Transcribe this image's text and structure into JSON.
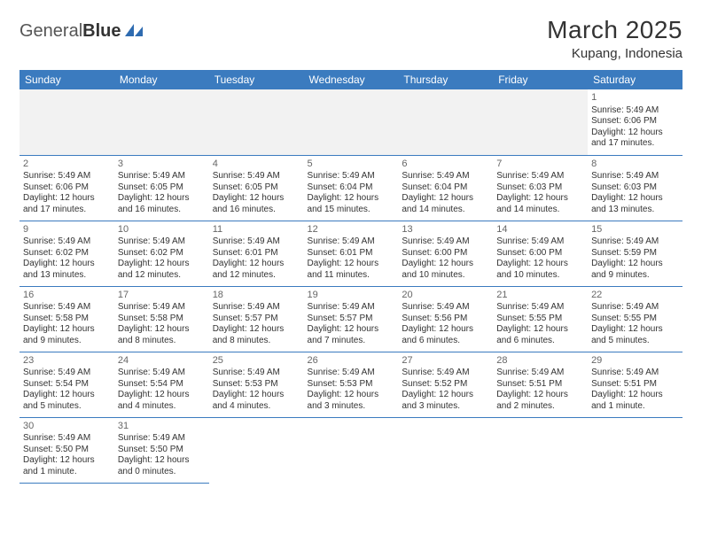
{
  "logo": {
    "text1": "General",
    "text2": "Blue"
  },
  "title": "March 2025",
  "location": "Kupang, Indonesia",
  "colors": {
    "header_bg": "#3b7bbf",
    "header_text": "#ffffff",
    "border": "#3b7bbf",
    "empty_bg": "#f2f2f2",
    "logo_accent": "#2e6bb0"
  },
  "weekdays": [
    "Sunday",
    "Monday",
    "Tuesday",
    "Wednesday",
    "Thursday",
    "Friday",
    "Saturday"
  ],
  "cells": [
    {
      "row": 0,
      "col": 6,
      "day": "1",
      "sunrise": "Sunrise: 5:49 AM",
      "sunset": "Sunset: 6:06 PM",
      "daylight": "Daylight: 12 hours and 17 minutes."
    },
    {
      "row": 1,
      "col": 0,
      "day": "2",
      "sunrise": "Sunrise: 5:49 AM",
      "sunset": "Sunset: 6:06 PM",
      "daylight": "Daylight: 12 hours and 17 minutes."
    },
    {
      "row": 1,
      "col": 1,
      "day": "3",
      "sunrise": "Sunrise: 5:49 AM",
      "sunset": "Sunset: 6:05 PM",
      "daylight": "Daylight: 12 hours and 16 minutes."
    },
    {
      "row": 1,
      "col": 2,
      "day": "4",
      "sunrise": "Sunrise: 5:49 AM",
      "sunset": "Sunset: 6:05 PM",
      "daylight": "Daylight: 12 hours and 16 minutes."
    },
    {
      "row": 1,
      "col": 3,
      "day": "5",
      "sunrise": "Sunrise: 5:49 AM",
      "sunset": "Sunset: 6:04 PM",
      "daylight": "Daylight: 12 hours and 15 minutes."
    },
    {
      "row": 1,
      "col": 4,
      "day": "6",
      "sunrise": "Sunrise: 5:49 AM",
      "sunset": "Sunset: 6:04 PM",
      "daylight": "Daylight: 12 hours and 14 minutes."
    },
    {
      "row": 1,
      "col": 5,
      "day": "7",
      "sunrise": "Sunrise: 5:49 AM",
      "sunset": "Sunset: 6:03 PM",
      "daylight": "Daylight: 12 hours and 14 minutes."
    },
    {
      "row": 1,
      "col": 6,
      "day": "8",
      "sunrise": "Sunrise: 5:49 AM",
      "sunset": "Sunset: 6:03 PM",
      "daylight": "Daylight: 12 hours and 13 minutes."
    },
    {
      "row": 2,
      "col": 0,
      "day": "9",
      "sunrise": "Sunrise: 5:49 AM",
      "sunset": "Sunset: 6:02 PM",
      "daylight": "Daylight: 12 hours and 13 minutes."
    },
    {
      "row": 2,
      "col": 1,
      "day": "10",
      "sunrise": "Sunrise: 5:49 AM",
      "sunset": "Sunset: 6:02 PM",
      "daylight": "Daylight: 12 hours and 12 minutes."
    },
    {
      "row": 2,
      "col": 2,
      "day": "11",
      "sunrise": "Sunrise: 5:49 AM",
      "sunset": "Sunset: 6:01 PM",
      "daylight": "Daylight: 12 hours and 12 minutes."
    },
    {
      "row": 2,
      "col": 3,
      "day": "12",
      "sunrise": "Sunrise: 5:49 AM",
      "sunset": "Sunset: 6:01 PM",
      "daylight": "Daylight: 12 hours and 11 minutes."
    },
    {
      "row": 2,
      "col": 4,
      "day": "13",
      "sunrise": "Sunrise: 5:49 AM",
      "sunset": "Sunset: 6:00 PM",
      "daylight": "Daylight: 12 hours and 10 minutes."
    },
    {
      "row": 2,
      "col": 5,
      "day": "14",
      "sunrise": "Sunrise: 5:49 AM",
      "sunset": "Sunset: 6:00 PM",
      "daylight": "Daylight: 12 hours and 10 minutes."
    },
    {
      "row": 2,
      "col": 6,
      "day": "15",
      "sunrise": "Sunrise: 5:49 AM",
      "sunset": "Sunset: 5:59 PM",
      "daylight": "Daylight: 12 hours and 9 minutes."
    },
    {
      "row": 3,
      "col": 0,
      "day": "16",
      "sunrise": "Sunrise: 5:49 AM",
      "sunset": "Sunset: 5:58 PM",
      "daylight": "Daylight: 12 hours and 9 minutes."
    },
    {
      "row": 3,
      "col": 1,
      "day": "17",
      "sunrise": "Sunrise: 5:49 AM",
      "sunset": "Sunset: 5:58 PM",
      "daylight": "Daylight: 12 hours and 8 minutes."
    },
    {
      "row": 3,
      "col": 2,
      "day": "18",
      "sunrise": "Sunrise: 5:49 AM",
      "sunset": "Sunset: 5:57 PM",
      "daylight": "Daylight: 12 hours and 8 minutes."
    },
    {
      "row": 3,
      "col": 3,
      "day": "19",
      "sunrise": "Sunrise: 5:49 AM",
      "sunset": "Sunset: 5:57 PM",
      "daylight": "Daylight: 12 hours and 7 minutes."
    },
    {
      "row": 3,
      "col": 4,
      "day": "20",
      "sunrise": "Sunrise: 5:49 AM",
      "sunset": "Sunset: 5:56 PM",
      "daylight": "Daylight: 12 hours and 6 minutes."
    },
    {
      "row": 3,
      "col": 5,
      "day": "21",
      "sunrise": "Sunrise: 5:49 AM",
      "sunset": "Sunset: 5:55 PM",
      "daylight": "Daylight: 12 hours and 6 minutes."
    },
    {
      "row": 3,
      "col": 6,
      "day": "22",
      "sunrise": "Sunrise: 5:49 AM",
      "sunset": "Sunset: 5:55 PM",
      "daylight": "Daylight: 12 hours and 5 minutes."
    },
    {
      "row": 4,
      "col": 0,
      "day": "23",
      "sunrise": "Sunrise: 5:49 AM",
      "sunset": "Sunset: 5:54 PM",
      "daylight": "Daylight: 12 hours and 5 minutes."
    },
    {
      "row": 4,
      "col": 1,
      "day": "24",
      "sunrise": "Sunrise: 5:49 AM",
      "sunset": "Sunset: 5:54 PM",
      "daylight": "Daylight: 12 hours and 4 minutes."
    },
    {
      "row": 4,
      "col": 2,
      "day": "25",
      "sunrise": "Sunrise: 5:49 AM",
      "sunset": "Sunset: 5:53 PM",
      "daylight": "Daylight: 12 hours and 4 minutes."
    },
    {
      "row": 4,
      "col": 3,
      "day": "26",
      "sunrise": "Sunrise: 5:49 AM",
      "sunset": "Sunset: 5:53 PM",
      "daylight": "Daylight: 12 hours and 3 minutes."
    },
    {
      "row": 4,
      "col": 4,
      "day": "27",
      "sunrise": "Sunrise: 5:49 AM",
      "sunset": "Sunset: 5:52 PM",
      "daylight": "Daylight: 12 hours and 3 minutes."
    },
    {
      "row": 4,
      "col": 5,
      "day": "28",
      "sunrise": "Sunrise: 5:49 AM",
      "sunset": "Sunset: 5:51 PM",
      "daylight": "Daylight: 12 hours and 2 minutes."
    },
    {
      "row": 4,
      "col": 6,
      "day": "29",
      "sunrise": "Sunrise: 5:49 AM",
      "sunset": "Sunset: 5:51 PM",
      "daylight": "Daylight: 12 hours and 1 minute."
    },
    {
      "row": 5,
      "col": 0,
      "day": "30",
      "sunrise": "Sunrise: 5:49 AM",
      "sunset": "Sunset: 5:50 PM",
      "daylight": "Daylight: 12 hours and 1 minute."
    },
    {
      "row": 5,
      "col": 1,
      "day": "31",
      "sunrise": "Sunrise: 5:49 AM",
      "sunset": "Sunset: 5:50 PM",
      "daylight": "Daylight: 12 hours and 0 minutes."
    }
  ],
  "grid": {
    "rows": 6,
    "cols": 7
  }
}
